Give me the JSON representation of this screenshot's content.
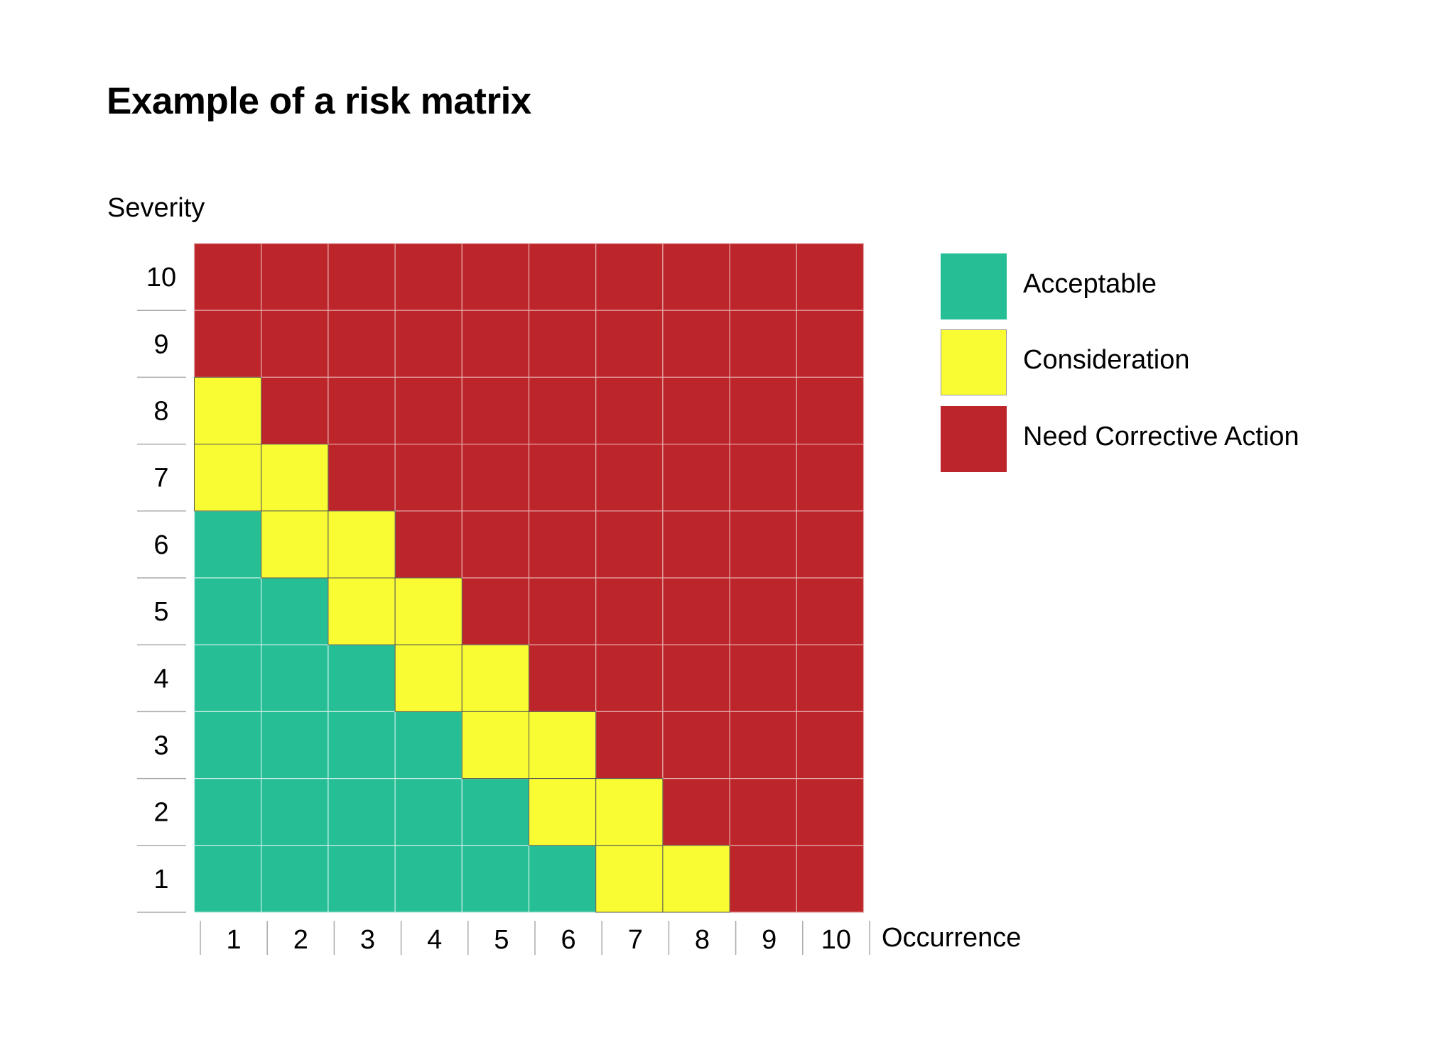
{
  "chart_data": {
    "type": "heatmap",
    "title": "Example of a risk matrix",
    "ylabel": "Severity",
    "xlabel": "Occurrence",
    "x_ticks": [
      "1",
      "2",
      "3",
      "4",
      "5",
      "6",
      "7",
      "8",
      "9",
      "10"
    ],
    "y_ticks": [
      "1",
      "2",
      "3",
      "4",
      "5",
      "6",
      "7",
      "8",
      "9",
      "10"
    ],
    "categories": {
      "G": {
        "label": "Acceptable",
        "color": "#26BE94"
      },
      "Y": {
        "label": "Consideration",
        "color": "#F9FC33"
      },
      "R": {
        "label": "Need Corrective Action",
        "color": "#BC262A"
      }
    },
    "legend_order": [
      "G",
      "Y",
      "R"
    ],
    "legend_position": "right",
    "matrix_rows_top_to_bottom": [
      {
        "severity": 10,
        "cells": [
          "R",
          "R",
          "R",
          "R",
          "R",
          "R",
          "R",
          "R",
          "R",
          "R"
        ]
      },
      {
        "severity": 9,
        "cells": [
          "R",
          "R",
          "R",
          "R",
          "R",
          "R",
          "R",
          "R",
          "R",
          "R"
        ]
      },
      {
        "severity": 8,
        "cells": [
          "Y",
          "R",
          "R",
          "R",
          "R",
          "R",
          "R",
          "R",
          "R",
          "R"
        ]
      },
      {
        "severity": 7,
        "cells": [
          "Y",
          "Y",
          "R",
          "R",
          "R",
          "R",
          "R",
          "R",
          "R",
          "R"
        ]
      },
      {
        "severity": 6,
        "cells": [
          "G",
          "Y",
          "Y",
          "R",
          "R",
          "R",
          "R",
          "R",
          "R",
          "R"
        ]
      },
      {
        "severity": 5,
        "cells": [
          "G",
          "G",
          "Y",
          "Y",
          "R",
          "R",
          "R",
          "R",
          "R",
          "R"
        ]
      },
      {
        "severity": 4,
        "cells": [
          "G",
          "G",
          "G",
          "Y",
          "Y",
          "R",
          "R",
          "R",
          "R",
          "R"
        ]
      },
      {
        "severity": 3,
        "cells": [
          "G",
          "G",
          "G",
          "G",
          "Y",
          "Y",
          "R",
          "R",
          "R",
          "R"
        ]
      },
      {
        "severity": 2,
        "cells": [
          "G",
          "G",
          "G",
          "G",
          "G",
          "Y",
          "Y",
          "R",
          "R",
          "R"
        ]
      },
      {
        "severity": 1,
        "cells": [
          "G",
          "G",
          "G",
          "G",
          "G",
          "G",
          "Y",
          "Y",
          "R",
          "R"
        ]
      }
    ]
  }
}
